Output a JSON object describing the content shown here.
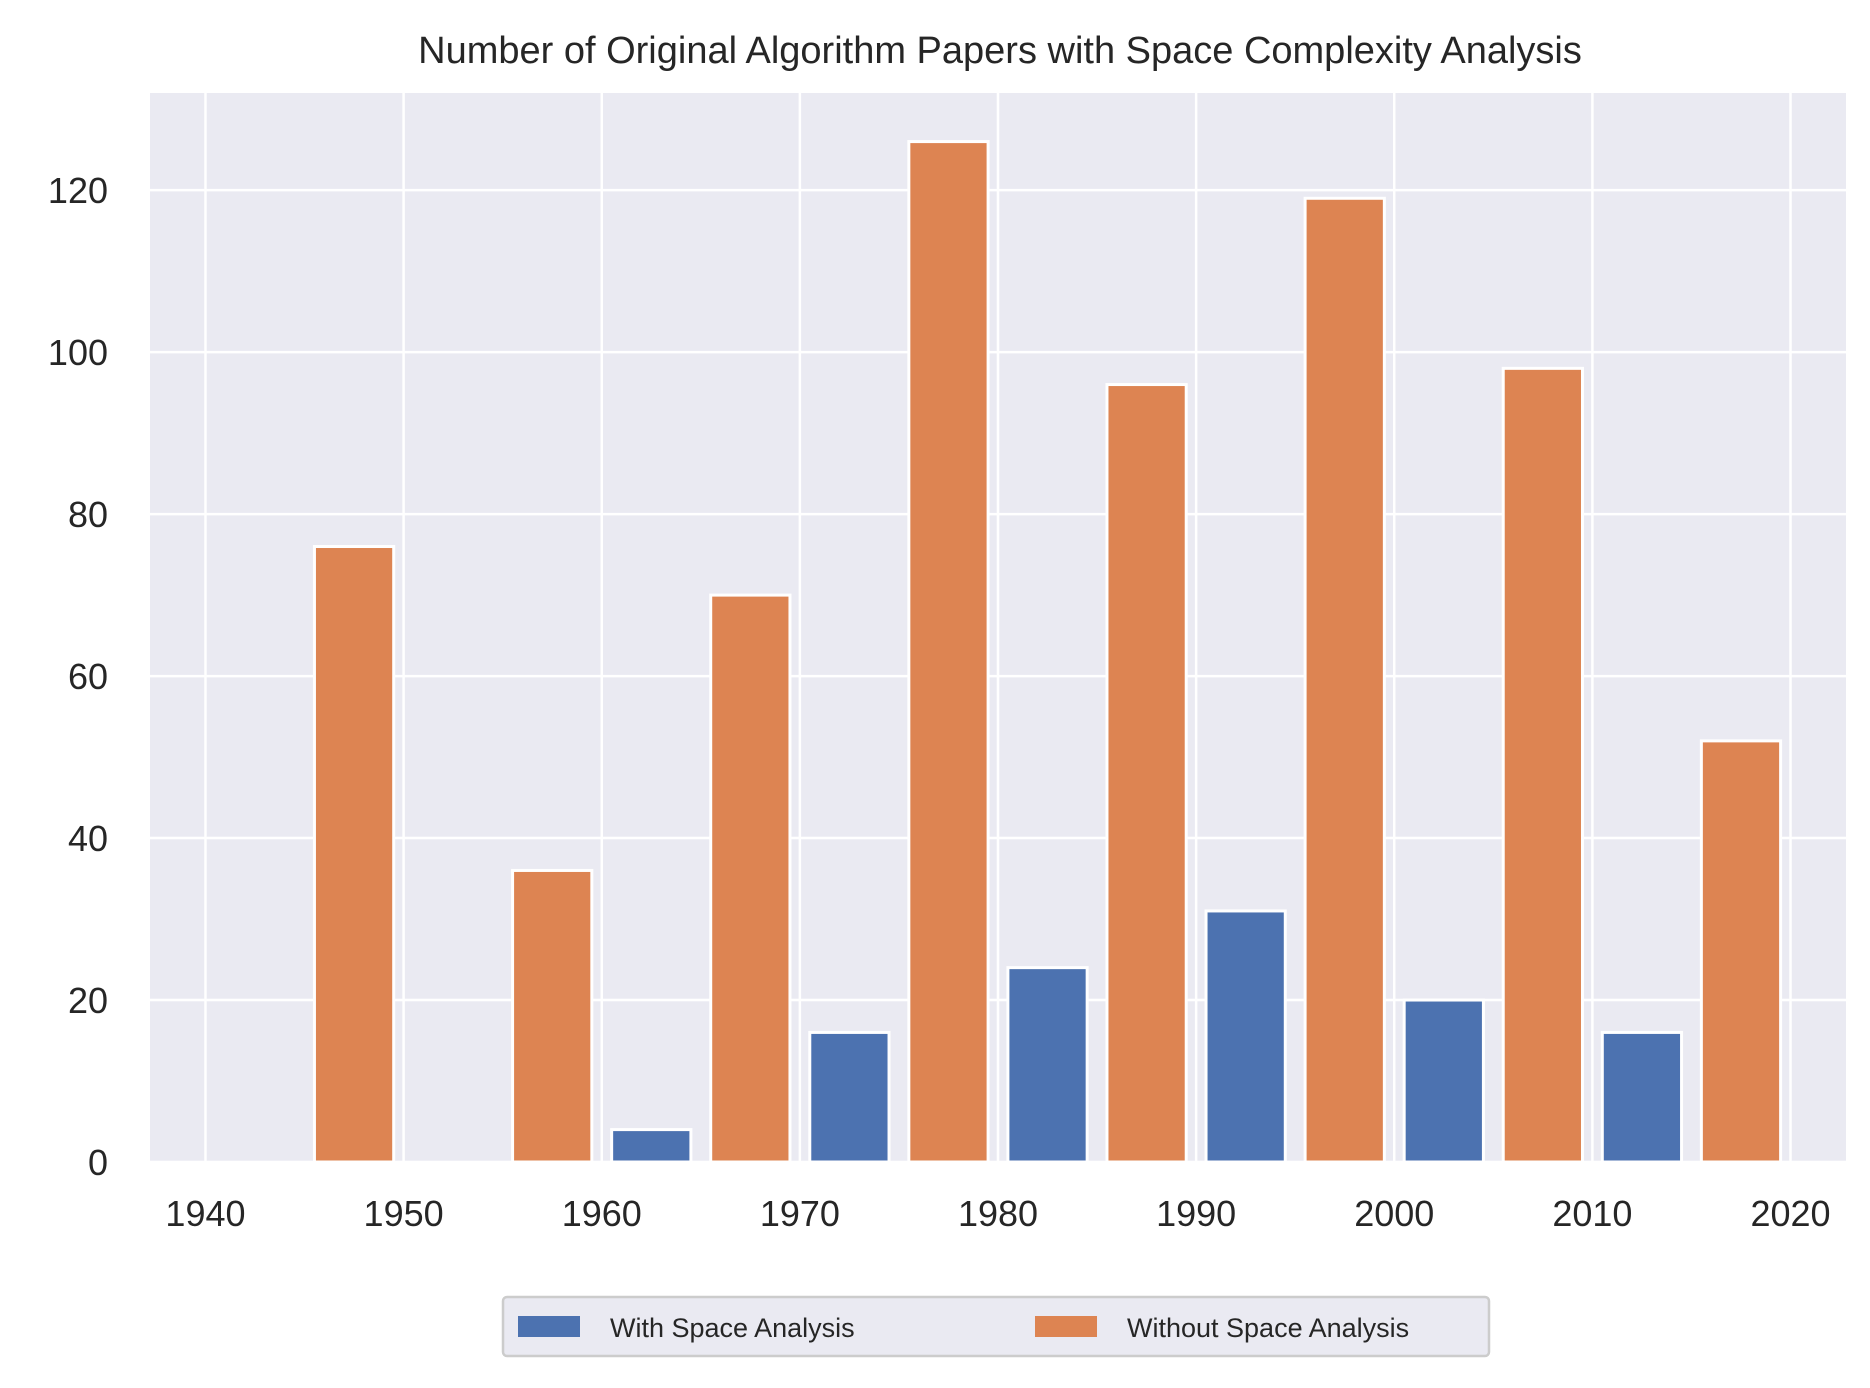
{
  "chart_data": {
    "type": "bar",
    "title": "Number of Original Algorithm Papers with Space Complexity Analysis",
    "xlabel": "",
    "ylabel": "",
    "xlim": [
      1937.2,
      2022.8
    ],
    "ylim": [
      0,
      132
    ],
    "xticks": [
      1940,
      1950,
      1960,
      1970,
      1980,
      1990,
      2000,
      2010,
      2020
    ],
    "yticks": [
      0,
      20,
      40,
      60,
      80,
      100,
      120
    ],
    "grid": true,
    "legend_position": "bottom-center",
    "categories": [
      "1940s",
      "1950s",
      "1960s",
      "1970s",
      "1980s",
      "1990s",
      "2000s",
      "2010s"
    ],
    "bin_starts": [
      1940,
      1950,
      1960,
      1970,
      1980,
      1990,
      2000,
      2010
    ],
    "series": [
      {
        "name": "With Space Analysis",
        "color": "#4c72b0",
        "values": [
          0,
          0,
          4,
          16,
          24,
          31,
          20,
          16
        ]
      },
      {
        "name": "Without Space Analysis",
        "color": "#dd8452",
        "values": [
          76,
          36,
          70,
          126,
          96,
          119,
          98,
          52
        ]
      }
    ]
  },
  "colors": {
    "plot_background": "#eaeaf2",
    "grid": "#ffffff",
    "bar_edge": "#ffffff"
  }
}
